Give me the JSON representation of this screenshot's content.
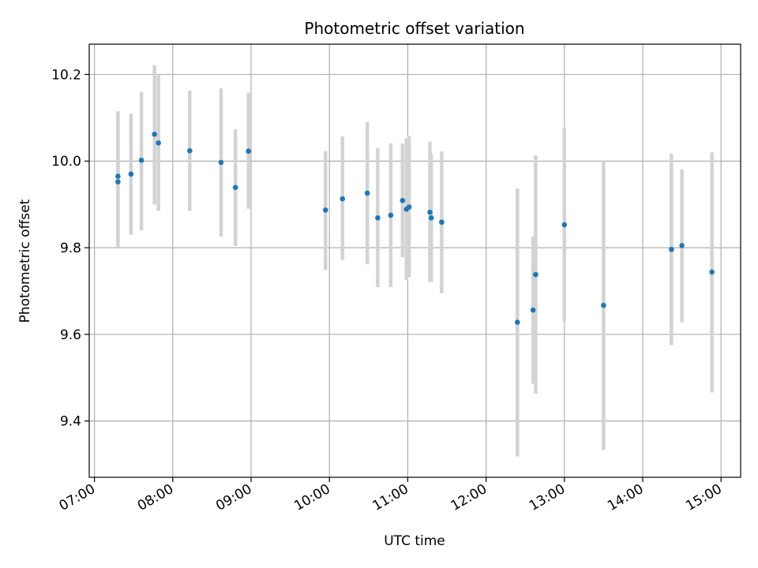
{
  "chart_data": {
    "type": "scatter",
    "title": "Photometric offset variation",
    "xlabel": "UTC time",
    "ylabel": "Photometric offset",
    "x_ticks": [
      "07:00",
      "08:00",
      "09:00",
      "10:00",
      "11:00",
      "12:00",
      "13:00",
      "14:00",
      "15:00"
    ],
    "y_ticks": [
      "9.4",
      "9.6",
      "9.8",
      "10.0",
      "10.2"
    ],
    "xlim": [
      "06:56",
      "15:15"
    ],
    "ylim": [
      9.27,
      10.27
    ],
    "grid": true,
    "colors": {
      "points": "#1f77b4",
      "errorbars": "#d3d3d3",
      "grid": "#b0b0b0"
    },
    "points": [
      {
        "t": "07:18",
        "y": 9.965,
        "ylo": 9.815,
        "yhi": 10.115
      },
      {
        "t": "07:18",
        "y": 9.952,
        "ylo": 9.8,
        "yhi": 10.1
      },
      {
        "t": "07:28",
        "y": 9.97,
        "ylo": 9.83,
        "yhi": 10.11
      },
      {
        "t": "07:36",
        "y": 10.002,
        "ylo": 9.84,
        "yhi": 10.16
      },
      {
        "t": "07:46",
        "y": 10.062,
        "ylo": 9.9,
        "yhi": 10.222
      },
      {
        "t": "07:49",
        "y": 10.042,
        "ylo": 9.885,
        "yhi": 10.198
      },
      {
        "t": "08:13",
        "y": 10.024,
        "ylo": 9.885,
        "yhi": 10.163
      },
      {
        "t": "08:37",
        "y": 9.997,
        "ylo": 9.826,
        "yhi": 10.168
      },
      {
        "t": "08:48",
        "y": 9.939,
        "ylo": 9.804,
        "yhi": 10.074
      },
      {
        "t": "08:58",
        "y": 10.023,
        "ylo": 9.89,
        "yhi": 10.158
      },
      {
        "t": "09:57",
        "y": 9.887,
        "ylo": 9.749,
        "yhi": 10.023
      },
      {
        "t": "10:10",
        "y": 9.913,
        "ylo": 9.772,
        "yhi": 10.057
      },
      {
        "t": "10:29",
        "y": 9.926,
        "ylo": 9.762,
        "yhi": 10.09
      },
      {
        "t": "10:37",
        "y": 9.869,
        "ylo": 9.709,
        "yhi": 10.03
      },
      {
        "t": "10:47",
        "y": 9.875,
        "ylo": 9.709,
        "yhi": 10.041
      },
      {
        "t": "10:56",
        "y": 9.909,
        "ylo": 9.778,
        "yhi": 10.041
      },
      {
        "t": "10:59",
        "y": 9.889,
        "ylo": 9.725,
        "yhi": 10.053
      },
      {
        "t": "11:01",
        "y": 9.894,
        "ylo": 9.732,
        "yhi": 10.058
      },
      {
        "t": "11:17",
        "y": 9.882,
        "ylo": 9.721,
        "yhi": 10.045
      },
      {
        "t": "11:18",
        "y": 9.869,
        "ylo": 9.721,
        "yhi": 10.017
      },
      {
        "t": "11:26",
        "y": 9.859,
        "ylo": 9.695,
        "yhi": 10.022
      },
      {
        "t": "12:24",
        "y": 9.628,
        "ylo": 9.318,
        "yhi": 9.937
      },
      {
        "t": "12:36",
        "y": 9.656,
        "ylo": 9.486,
        "yhi": 9.826
      },
      {
        "t": "12:38",
        "y": 9.738,
        "ylo": 9.463,
        "yhi": 10.013
      },
      {
        "t": "13:00",
        "y": 9.853,
        "ylo": 9.63,
        "yhi": 10.077
      },
      {
        "t": "13:30",
        "y": 9.667,
        "ylo": 9.333,
        "yhi": 10.0
      },
      {
        "t": "14:22",
        "y": 9.796,
        "ylo": 9.575,
        "yhi": 10.017
      },
      {
        "t": "14:30",
        "y": 9.805,
        "ylo": 9.628,
        "yhi": 9.981
      },
      {
        "t": "14:53",
        "y": 9.744,
        "ylo": 9.466,
        "yhi": 10.02
      }
    ]
  }
}
